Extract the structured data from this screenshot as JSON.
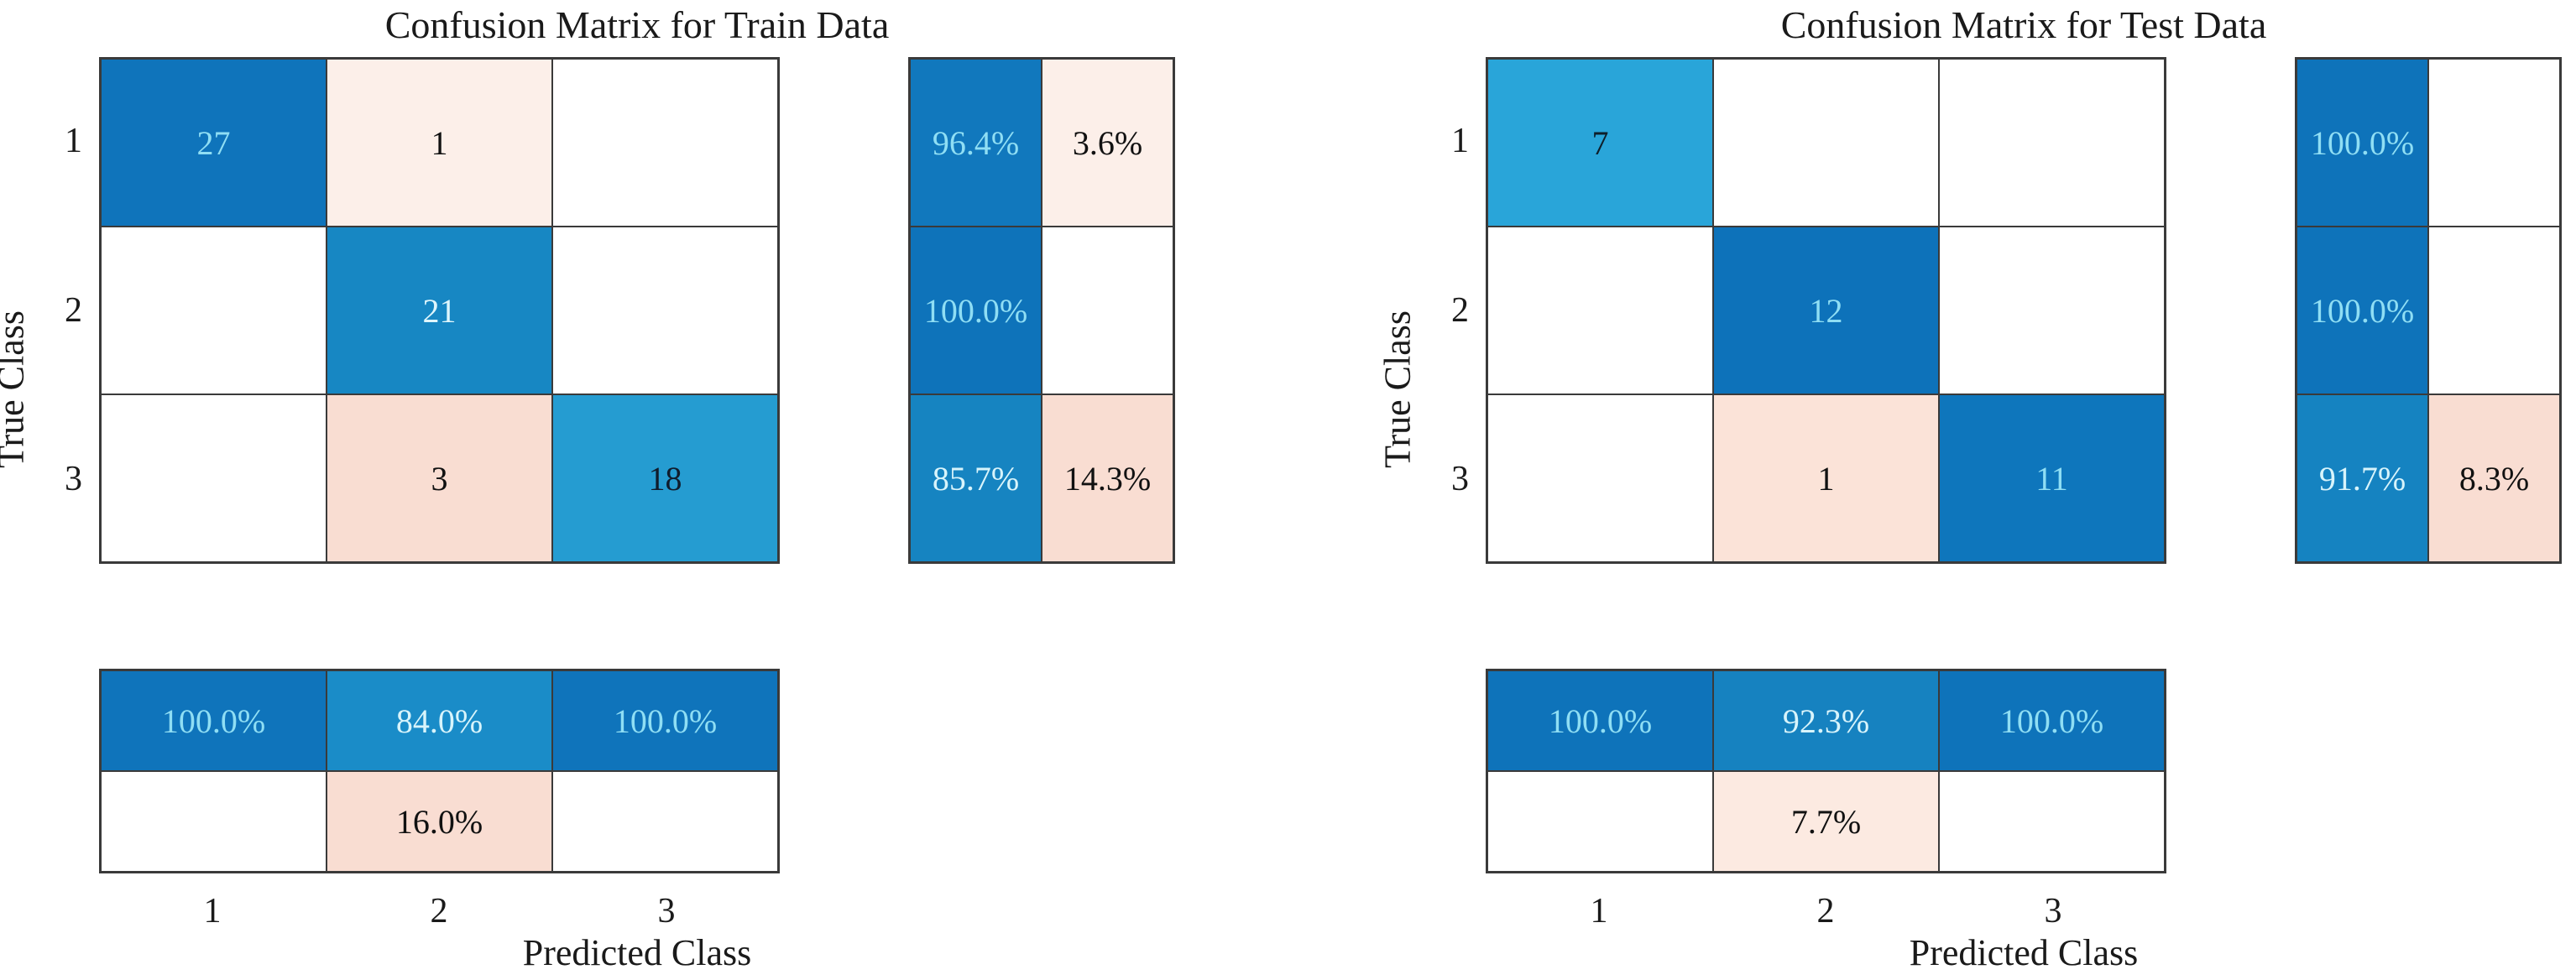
{
  "charts": [
    {
      "title": "Confusion Matrix for Train Data",
      "xlabel": "Predicted Class",
      "ylabel": "True Class",
      "x_ticks": [
        "1",
        "2",
        "3"
      ],
      "y_ticks": [
        "1",
        "2",
        "3"
      ],
      "matrix": [
        [
          {
            "v": "27",
            "bg": "#0f74bb",
            "fg": "#8fdef4"
          },
          {
            "v": "1",
            "bg": "#fcefe9",
            "fg": "#111111"
          },
          {
            "v": "",
            "bg": "#ffffff",
            "fg": "#111111"
          }
        ],
        [
          {
            "v": "",
            "bg": "#ffffff",
            "fg": "#111111"
          },
          {
            "v": "21",
            "bg": "#1787c3",
            "fg": "#dff6fc"
          },
          {
            "v": "",
            "bg": "#ffffff",
            "fg": "#111111"
          }
        ],
        [
          {
            "v": "",
            "bg": "#ffffff",
            "fg": "#111111"
          },
          {
            "v": "3",
            "bg": "#f9ddd2",
            "fg": "#111111"
          },
          {
            "v": "18",
            "bg": "#259cd1",
            "fg": "#101c2c"
          }
        ]
      ],
      "row_summary": [
        [
          {
            "v": "96.4%",
            "bg": "#1178bd",
            "fg": "#8fdef4"
          },
          {
            "v": "3.6%",
            "bg": "#fcefe9",
            "fg": "#111111"
          }
        ],
        [
          {
            "v": "100.0%",
            "bg": "#0e73ba",
            "fg": "#8fdef4"
          },
          {
            "v": "",
            "bg": "#ffffff",
            "fg": "#111111"
          }
        ],
        [
          {
            "v": "85.7%",
            "bg": "#1684c1",
            "fg": "#d8f4fb"
          },
          {
            "v": "14.3%",
            "bg": "#f9ddd2",
            "fg": "#111111"
          }
        ]
      ],
      "col_summary": [
        [
          {
            "v": "100.0%",
            "bg": "#0f74bb",
            "fg": "#8fdef4"
          },
          {
            "v": "84.0%",
            "bg": "#1a8cc8",
            "fg": "#d8f4fb"
          },
          {
            "v": "100.0%",
            "bg": "#0f74bb",
            "fg": "#8fdef4"
          }
        ],
        [
          {
            "v": "",
            "bg": "#ffffff",
            "fg": "#111111"
          },
          {
            "v": "16.0%",
            "bg": "#f9ddd2",
            "fg": "#111111"
          },
          {
            "v": "",
            "bg": "#ffffff",
            "fg": "#111111"
          }
        ]
      ]
    },
    {
      "title": "Confusion Matrix for Test Data",
      "xlabel": "Predicted Class",
      "ylabel": "True Class",
      "x_ticks": [
        "1",
        "2",
        "3"
      ],
      "y_ticks": [
        "1",
        "2",
        "3"
      ],
      "matrix": [
        [
          {
            "v": "7",
            "bg": "#29a5d9",
            "fg": "#0e1f2b"
          },
          {
            "v": "",
            "bg": "#ffffff",
            "fg": "#111111"
          },
          {
            "v": "",
            "bg": "#ffffff",
            "fg": "#111111"
          }
        ],
        [
          {
            "v": "",
            "bg": "#ffffff",
            "fg": "#111111"
          },
          {
            "v": "12",
            "bg": "#0d72ba",
            "fg": "#8fdef4"
          },
          {
            "v": "",
            "bg": "#ffffff",
            "fg": "#111111"
          }
        ],
        [
          {
            "v": "",
            "bg": "#ffffff",
            "fg": "#111111"
          },
          {
            "v": "1",
            "bg": "#fbe3d8",
            "fg": "#111111"
          },
          {
            "v": "11",
            "bg": "#0e76bc",
            "fg": "#8fdef4"
          }
        ]
      ],
      "row_summary": [
        [
          {
            "v": "100.0%",
            "bg": "#0e73ba",
            "fg": "#8fdef4"
          },
          {
            "v": "",
            "bg": "#ffffff",
            "fg": "#111111"
          }
        ],
        [
          {
            "v": "100.0%",
            "bg": "#0e73ba",
            "fg": "#8fdef4"
          },
          {
            "v": "",
            "bg": "#ffffff",
            "fg": "#111111"
          }
        ],
        [
          {
            "v": "91.7%",
            "bg": "#1583c1",
            "fg": "#d8f4fb"
          },
          {
            "v": "8.3%",
            "bg": "#f9ddd2",
            "fg": "#111111"
          }
        ]
      ],
      "col_summary": [
        [
          {
            "v": "100.0%",
            "bg": "#0e73ba",
            "fg": "#8fdef4"
          },
          {
            "v": "92.3%",
            "bg": "#1682c0",
            "fg": "#d8f4fb"
          },
          {
            "v": "100.0%",
            "bg": "#0e73ba",
            "fg": "#8fdef4"
          }
        ],
        [
          {
            "v": "",
            "bg": "#ffffff",
            "fg": "#111111"
          },
          {
            "v": "7.7%",
            "bg": "#fceae1",
            "fg": "#111111"
          },
          {
            "v": "",
            "bg": "#ffffff",
            "fg": "#111111"
          }
        ]
      ]
    }
  ],
  "chart_data": [
    {
      "type": "heatmap",
      "title": "Confusion Matrix for Train Data",
      "xlabel": "Predicted Class",
      "ylabel": "True Class",
      "classes": [
        1,
        2,
        3
      ],
      "matrix": [
        [
          27,
          1,
          0
        ],
        [
          0,
          21,
          0
        ],
        [
          0,
          3,
          18
        ]
      ],
      "row_normalized_pct": [
        [
          96.4,
          3.6
        ],
        [
          100.0,
          null
        ],
        [
          85.7,
          14.3
        ]
      ],
      "col_normalized_pct": [
        [
          100.0,
          84.0,
          100.0
        ],
        [
          null,
          16.0,
          null
        ]
      ],
      "diagonal_color": "#0f74bb",
      "offdiagonal_color": "#f9ddd2",
      "grid": true,
      "legend": "none"
    },
    {
      "type": "heatmap",
      "title": "Confusion Matrix for Test Data",
      "xlabel": "Predicted Class",
      "ylabel": "True Class",
      "classes": [
        1,
        2,
        3
      ],
      "matrix": [
        [
          7,
          0,
          0
        ],
        [
          0,
          12,
          0
        ],
        [
          0,
          1,
          11
        ]
      ],
      "row_normalized_pct": [
        [
          100.0,
          null
        ],
        [
          100.0,
          null
        ],
        [
          91.7,
          8.3
        ]
      ],
      "col_normalized_pct": [
        [
          100.0,
          92.3,
          100.0
        ],
        [
          null,
          7.7,
          null
        ]
      ],
      "diagonal_color": "#0e73ba",
      "offdiagonal_color": "#f9ddd2",
      "grid": true,
      "legend": "none"
    }
  ]
}
